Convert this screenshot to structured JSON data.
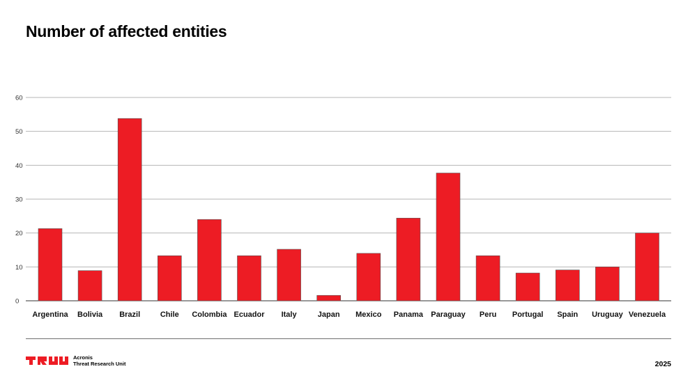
{
  "title": "Number of affected entities",
  "chart_data": {
    "type": "bar",
    "title": "Number of affected entities",
    "xlabel": "",
    "ylabel": "",
    "categories": [
      "Argentina",
      "Bolivia",
      "Brazil",
      "Chile",
      "Colombia",
      "Ecuador",
      "Italy",
      "Japan",
      "Mexico",
      "Panama",
      "Paraguay",
      "Peru",
      "Portugal",
      "Spain",
      "Uruguay",
      "Venezuela"
    ],
    "values": [
      21.3,
      8.9,
      53.8,
      13.3,
      24.0,
      13.3,
      15.2,
      1.6,
      14.0,
      24.4,
      37.7,
      13.3,
      8.2,
      9.1,
      10.0,
      20.0
    ],
    "ylim": [
      0,
      60
    ],
    "yticks": [
      0,
      10,
      20,
      30,
      40,
      50,
      60
    ],
    "grid": true,
    "bar_color": "#ed1c24"
  },
  "footer": {
    "brand_line1": "Acronis",
    "brand_line2": "Threat Research Unit",
    "year": "2025",
    "logo_icon": "tru-logo-icon",
    "logo_color": "#ed1c24"
  }
}
